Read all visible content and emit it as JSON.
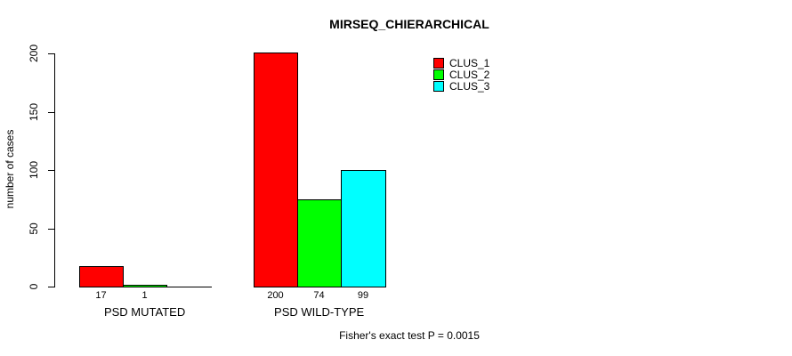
{
  "chart_data": {
    "type": "bar",
    "title": "MIRSEQ_CHIERARCHICAL",
    "ylabel": "number of cases",
    "xlabel": "",
    "categories": [
      "PSD MUTATED",
      "PSD WILD-TYPE"
    ],
    "series": [
      {
        "name": "CLUS_1",
        "color": "#ff0000",
        "values": [
          17,
          200
        ]
      },
      {
        "name": "CLUS_2",
        "color": "#00ff00",
        "values": [
          1,
          74
        ]
      },
      {
        "name": "CLUS_3",
        "color": "#00ffff",
        "values": [
          0,
          99
        ]
      }
    ],
    "bar_value_labels": [
      [
        "17",
        "1",
        ""
      ],
      [
        "200",
        "74",
        "99"
      ]
    ],
    "yticks": [
      0,
      50,
      100,
      150,
      200
    ],
    "ylim": [
      0,
      200
    ],
    "grid": false,
    "legend_position": "top-right",
    "legend_entries": [
      "CLUS_1",
      "CLUS_2",
      "CLUS_3"
    ],
    "footnote": "Fisher's exact test P = 0.0015",
    "colors": {
      "background": "#ffffff",
      "axis": "#000000",
      "text": "#000000"
    }
  }
}
